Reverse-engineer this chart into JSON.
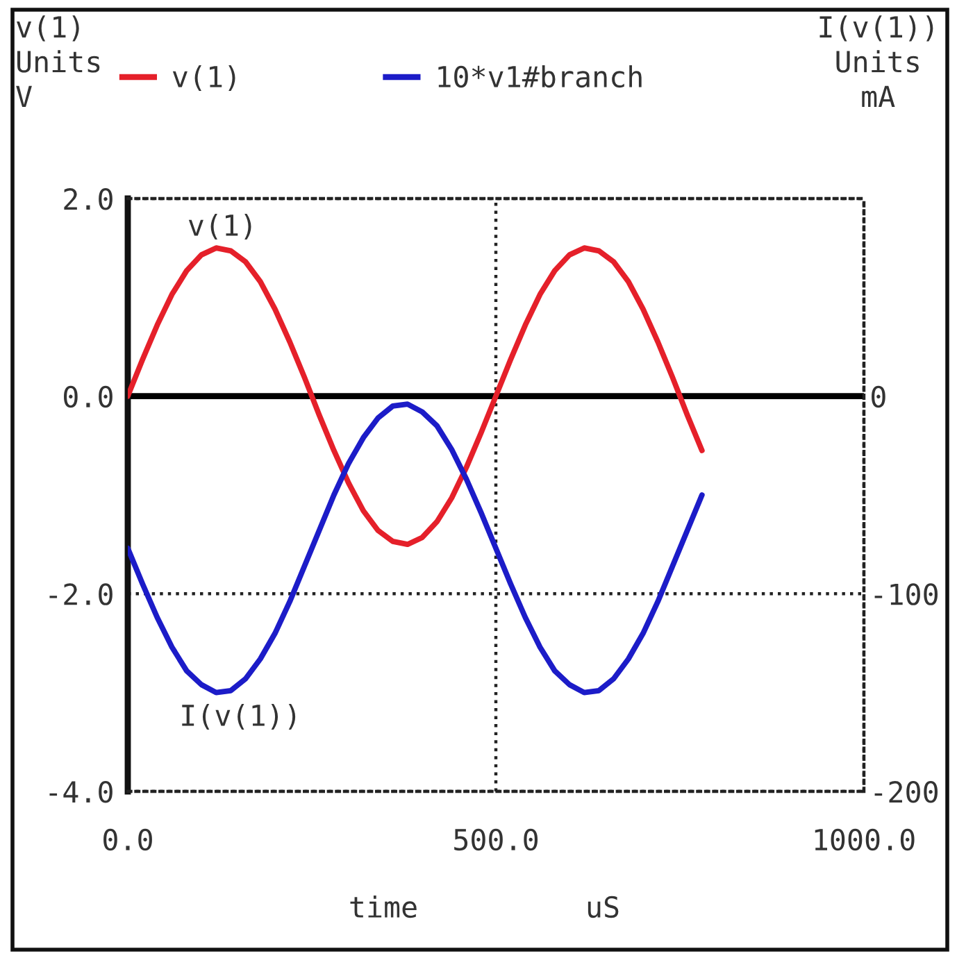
{
  "chart_data": {
    "type": "line",
    "xlabel": "time",
    "ylabel": "v(1)\nUnits\nV",
    "y2label": "I(v(1))\nUnits\nmA",
    "annotations": [
      "v(1)",
      "I(v(1))",
      "uS"
    ],
    "x": [
      0,
      20,
      40,
      60,
      80,
      100,
      120,
      140,
      160,
      180,
      200,
      220,
      240,
      260,
      280,
      300,
      320,
      340,
      360,
      380,
      400,
      420,
      440,
      460,
      480,
      500,
      520,
      540,
      560,
      580,
      600,
      620,
      640,
      660,
      680,
      700,
      720,
      740,
      760,
      780
    ],
    "series": [
      {
        "name": "v(1)",
        "color": "#e5202a",
        "values": [
          0.0,
          0.37,
          0.72,
          1.03,
          1.27,
          1.43,
          1.5,
          1.47,
          1.36,
          1.16,
          0.88,
          0.55,
          0.19,
          -0.19,
          -0.55,
          -0.88,
          -1.16,
          -1.36,
          -1.47,
          -1.5,
          -1.43,
          -1.27,
          -1.03,
          -0.72,
          -0.37,
          0.0,
          0.37,
          0.72,
          1.03,
          1.27,
          1.43,
          1.5,
          1.47,
          1.36,
          1.16,
          0.88,
          0.55,
          0.19,
          -0.19,
          -0.55
        ]
      },
      {
        "name": "10*v1#branch",
        "color": "#1c1cc8",
        "axis": "y2",
        "values": [
          -77,
          -95,
          -112,
          -127,
          -139,
          -146,
          -150,
          -149,
          -143,
          -133,
          -120,
          -104,
          -86,
          -68,
          -50,
          -34,
          -21,
          -11,
          -5,
          -4,
          -8,
          -15,
          -27,
          -42,
          -59,
          -77,
          -95,
          -112,
          -127,
          -139,
          -146,
          -150,
          -149,
          -143,
          -133,
          -120,
          -104,
          -86,
          -68,
          -50
        ]
      }
    ],
    "xlim": [
      0,
      1000
    ],
    "xticks": [
      {
        "value": 0,
        "label": "0.0"
      },
      {
        "value": 500,
        "label": "500.0"
      },
      {
        "value": 1000,
        "label": "1000.0"
      }
    ],
    "ylim": [
      -4,
      2
    ],
    "yticks": [
      {
        "value": 2,
        "label": "2.0"
      },
      {
        "value": 0,
        "label": "0.0"
      },
      {
        "value": -2,
        "label": "-2.0"
      },
      {
        "value": -4,
        "label": "-4.0"
      }
    ],
    "y2lim": [
      -200,
      100
    ],
    "y2ticks": [
      0,
      -100,
      -200
    ],
    "ref_lines": [
      {
        "axis": "y",
        "value": 0,
        "color": "#000000"
      }
    ],
    "grid": true,
    "legend": "top"
  }
}
